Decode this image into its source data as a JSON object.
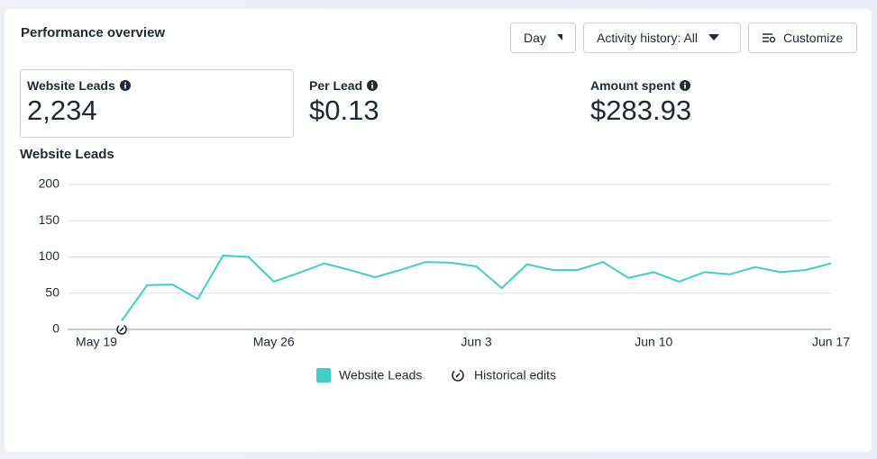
{
  "header": {
    "title": "Performance overview"
  },
  "controls": [
    "Day",
    "Activity history: All",
    "Customize"
  ],
  "metrics": [
    {
      "label": "Website Leads",
      "value": "2,234"
    },
    {
      "label": "Per Lead",
      "value": "$0.13"
    },
    {
      "label": "Amount spent",
      "value": "$283.93"
    }
  ],
  "chart_data": {
    "type": "line",
    "title": "Website Leads",
    "categories": [
      "May 19",
      null,
      null,
      null,
      null,
      null,
      null,
      "May 26",
      null,
      null,
      null,
      null,
      null,
      null,
      null,
      "Jun 3",
      null,
      null,
      null,
      null,
      null,
      null,
      "Jun 10",
      null,
      null,
      null,
      null,
      null,
      null,
      "Jun 17"
    ],
    "series": [
      {
        "name": "Website Leads",
        "color": "#3dcfc8",
        "values": [
          null,
          12,
          61,
          62,
          42,
          102,
          100,
          66,
          78,
          91,
          82,
          72,
          82,
          93,
          92,
          87,
          57,
          90,
          82,
          82,
          93,
          71,
          79,
          66,
          79,
          76,
          86,
          79,
          82,
          91
        ]
      }
    ],
    "ylim": [
      0,
      200
    ],
    "yticks": [
      0,
      50,
      100,
      150,
      200
    ],
    "grid": true,
    "annotation_legend": "Historical edits"
  }
}
